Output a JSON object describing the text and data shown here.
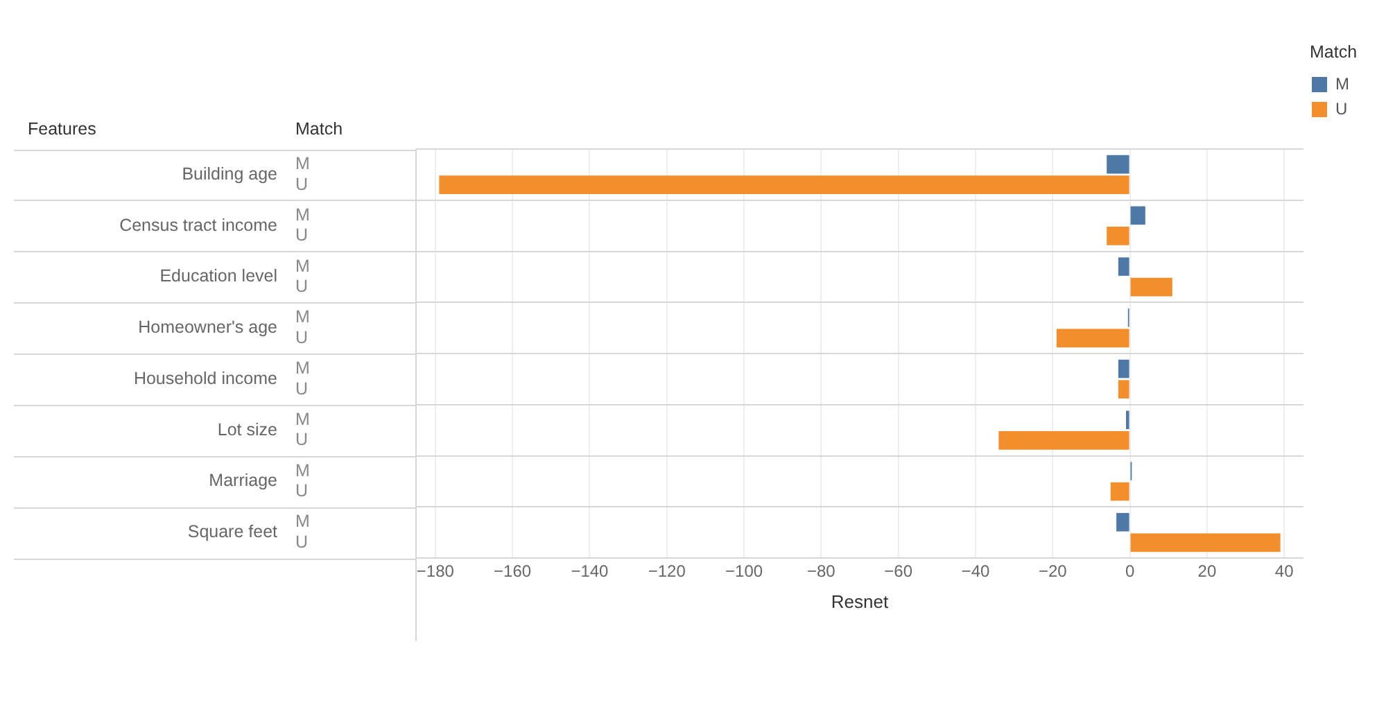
{
  "chart_data": {
    "type": "bar",
    "orientation": "horizontal",
    "xlabel": "Resnet",
    "annotations": [
      "Features"
    ],
    "legend_title": "Match",
    "categories": [
      "Building age",
      "Census tract income",
      "Education level",
      "Homeowner's age",
      "Household income",
      "Lot size",
      "Marriage",
      "Square feet"
    ],
    "series": [
      {
        "name": "M",
        "color": "#4e79a7",
        "values": [
          -6,
          4,
          -3,
          -0.5,
          -3,
          -1,
          0.5,
          -3.5
        ]
      },
      {
        "name": "U",
        "color": "#f28e2b",
        "values": [
          -179,
          -6,
          11,
          -19,
          -3,
          -34,
          -5,
          39
        ]
      }
    ],
    "xlim": [
      -185,
      45
    ],
    "xticks": [
      -180,
      -160,
      -140,
      -120,
      -100,
      -80,
      -60,
      -40,
      -20,
      0,
      20,
      40
    ],
    "grid": true,
    "legend": "top right"
  }
}
